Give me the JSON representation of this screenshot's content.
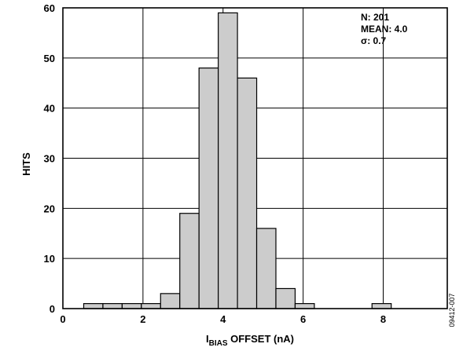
{
  "chart_data": {
    "type": "bar",
    "title": "",
    "xlabel": {
      "main": "I",
      "sub": "BIAS",
      "rest": " OFFSET (nA)"
    },
    "ylabel": "HITS",
    "xlim": [
      0,
      9.6
    ],
    "ylim": [
      0,
      60
    ],
    "xticks": [
      0,
      2,
      4,
      6,
      8
    ],
    "yticks": [
      0,
      10,
      20,
      30,
      40,
      50,
      60
    ],
    "grid": true,
    "bin_width": 0.48,
    "bins": [
      {
        "x": 0.76,
        "value": 1
      },
      {
        "x": 1.24,
        "value": 1
      },
      {
        "x": 1.72,
        "value": 1
      },
      {
        "x": 2.2,
        "value": 1
      },
      {
        "x": 2.68,
        "value": 3
      },
      {
        "x": 3.16,
        "value": 19
      },
      {
        "x": 3.64,
        "value": 48
      },
      {
        "x": 4.12,
        "value": 59
      },
      {
        "x": 4.6,
        "value": 46
      },
      {
        "x": 5.08,
        "value": 16
      },
      {
        "x": 5.56,
        "value": 4
      },
      {
        "x": 6.04,
        "value": 1
      },
      {
        "x": 7.96,
        "value": 1
      }
    ],
    "stats": [
      "N: 201",
      "MEAN: 4.0",
      "σ: 0.7"
    ],
    "bar_fill": "#cccccc",
    "bar_stroke": "#000000"
  },
  "figure_id": "09412-007"
}
